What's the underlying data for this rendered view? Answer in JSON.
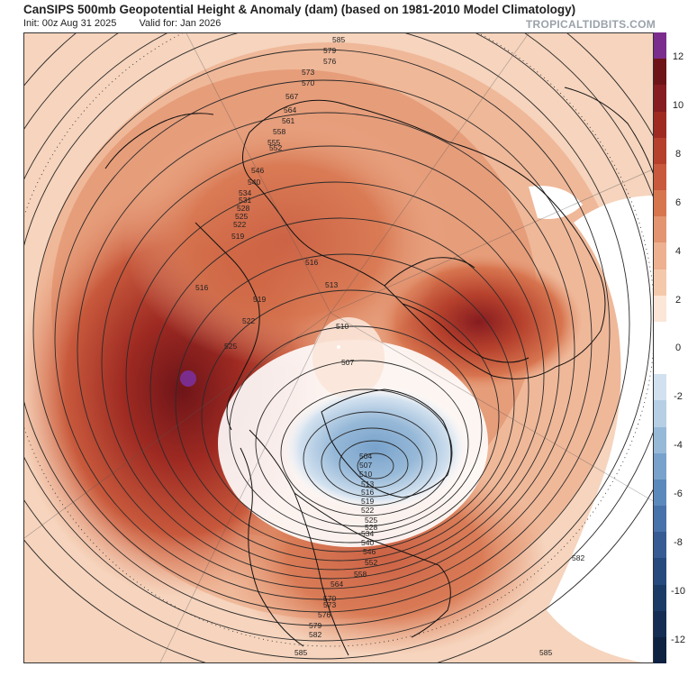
{
  "header": {
    "title": "CanSIPS 500mb Geopotential Height & Anomaly (dam) (based on 1981-2010 Model Climatology)",
    "init": "Init: 00z Aug 31 2025",
    "valid": "Valid for: Jan 2026",
    "brand": "TROPICALTIDBITS.COM"
  },
  "colorbar": {
    "ticks": [
      "12",
      "10",
      "8",
      "6",
      "4",
      "2",
      "0",
      "-2",
      "-4",
      "-6",
      "-8",
      "-10",
      "-12"
    ],
    "colors": [
      "#7b2d8e",
      "#6e1418",
      "#861c20",
      "#9e2a22",
      "#b5402c",
      "#c8593c",
      "#d7754f",
      "#e39470",
      "#edb090",
      "#f4c9ab",
      "#fbe6d8",
      "#ffffff",
      "#ffffff",
      "#d2e1ef",
      "#b6cfe4",
      "#97b9d8",
      "#78a2cb",
      "#5c89bb",
      "#4872aa",
      "#365c93",
      "#264a7d",
      "#1c3a66",
      "#152d52",
      "#0e2140"
    ]
  },
  "contour_labels": [
    "585",
    "579",
    "576",
    "573",
    "570",
    "567",
    "564",
    "561",
    "558",
    "555",
    "552",
    "546",
    "540",
    "534",
    "531",
    "528",
    "525",
    "522",
    "519",
    "516",
    "516",
    "513",
    "510",
    "507",
    "519",
    "522",
    "525",
    "504",
    "507",
    "510",
    "513",
    "516",
    "519",
    "522",
    "525",
    "528",
    "534",
    "540",
    "546",
    "552",
    "558",
    "564",
    "570",
    "573",
    "576",
    "579",
    "582",
    "585",
    "582"
  ]
}
